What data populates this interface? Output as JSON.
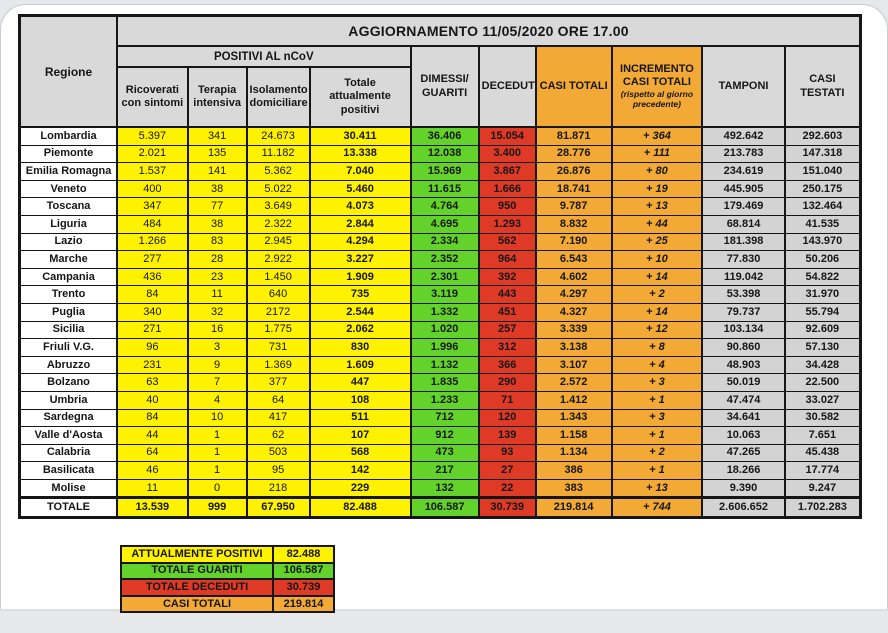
{
  "header": {
    "update_title": "AGGIORNAMENTO 11/05/2020 ORE 17.00"
  },
  "table": {
    "corner_label": "Regione",
    "group_positivi": "POSITIVI AL nCoV",
    "col_ricoverati": "Ricoverati con sintomi",
    "col_terapia": "Terapia intensiva",
    "col_isolamento": "Isolamento domiciliare",
    "col_totale_pos": "Totale attualmente positivi",
    "col_dimessi": "DIMESSI/ GUARITI",
    "col_deceduti": "DECEDUTI",
    "col_casi_totali": "CASI TOTALI",
    "col_incremento": "INCREMENTO CASI TOTALI",
    "col_incremento_sub": "(rispetto al giorno precedente)",
    "col_tamponi": "TAMPONI",
    "col_testati": "CASI TESTATI"
  },
  "colors": {
    "yellow": "#fff200",
    "green": "#63d32b",
    "red": "#df3a26",
    "red_text": "#7a150b",
    "orange": "#f2a935",
    "gray": "#d3d3d3"
  },
  "chart_data": {
    "type": "table",
    "title": "AGGIORNAMENTO 11/05/2020 ORE 17.00",
    "columns": [
      "Regione",
      "Ricoverati con sintomi",
      "Terapia intensiva",
      "Isolamento domiciliare",
      "Totale attualmente positivi",
      "DIMESSI/GUARITI",
      "DECEDUTI",
      "CASI TOTALI",
      "INCREMENTO CASI TOTALI (rispetto al giorno precedente)",
      "TAMPONI",
      "CASI TESTATI"
    ],
    "rows": [
      [
        "Lombardia",
        "5.397",
        "341",
        "24.673",
        "30.411",
        "36.406",
        "15.054",
        "81.871",
        "+ 364",
        "492.642",
        "292.603"
      ],
      [
        "Piemonte",
        "2.021",
        "135",
        "11.182",
        "13.338",
        "12.038",
        "3.400",
        "28.776",
        "+ 111",
        "213.783",
        "147.318"
      ],
      [
        "Emilia Romagna",
        "1.537",
        "141",
        "5.362",
        "7.040",
        "15.969",
        "3.867",
        "26.876",
        "+ 80",
        "234.619",
        "151.040"
      ],
      [
        "Veneto",
        "400",
        "38",
        "5.022",
        "5.460",
        "11.615",
        "1.666",
        "18.741",
        "+ 19",
        "445.905",
        "250.175"
      ],
      [
        "Toscana",
        "347",
        "77",
        "3.649",
        "4.073",
        "4.764",
        "950",
        "9.787",
        "+ 13",
        "179.469",
        "132.464"
      ],
      [
        "Liguria",
        "484",
        "38",
        "2.322",
        "2.844",
        "4.695",
        "1.293",
        "8.832",
        "+ 44",
        "68.814",
        "41.535"
      ],
      [
        "Lazio",
        "1.266",
        "83",
        "2.945",
        "4.294",
        "2.334",
        "562",
        "7.190",
        "+ 25",
        "181.398",
        "143.970"
      ],
      [
        "Marche",
        "277",
        "28",
        "2.922",
        "3.227",
        "2.352",
        "964",
        "6.543",
        "+ 10",
        "77.830",
        "50.206"
      ],
      [
        "Campania",
        "436",
        "23",
        "1.450",
        "1.909",
        "2.301",
        "392",
        "4.602",
        "+ 14",
        "119.042",
        "54.822"
      ],
      [
        "Trento",
        "84",
        "11",
        "640",
        "735",
        "3.119",
        "443",
        "4.297",
        "+ 2",
        "53.398",
        "31.970"
      ],
      [
        "Puglia",
        "340",
        "32",
        "2172",
        "2.544",
        "1.332",
        "451",
        "4.327",
        "+ 14",
        "79.737",
        "55.794"
      ],
      [
        "Sicilia",
        "271",
        "16",
        "1.775",
        "2.062",
        "1.020",
        "257",
        "3.339",
        "+ 12",
        "103.134",
        "92.609"
      ],
      [
        "Friuli V.G.",
        "96",
        "3",
        "731",
        "830",
        "1.996",
        "312",
        "3.138",
        "+ 8",
        "90.860",
        "57.130"
      ],
      [
        "Abruzzo",
        "231",
        "9",
        "1.369",
        "1.609",
        "1.132",
        "366",
        "3.107",
        "+ 4",
        "48.903",
        "34.428"
      ],
      [
        "Bolzano",
        "63",
        "7",
        "377",
        "447",
        "1.835",
        "290",
        "2.572",
        "+ 3",
        "50.019",
        "22.500"
      ],
      [
        "Umbria",
        "40",
        "4",
        "64",
        "108",
        "1.233",
        "71",
        "1.412",
        "+ 1",
        "47.474",
        "33.027"
      ],
      [
        "Sardegna",
        "84",
        "10",
        "417",
        "511",
        "712",
        "120",
        "1.343",
        "+ 3",
        "34.641",
        "30.582"
      ],
      [
        "Valle d'Aosta",
        "44",
        "1",
        "62",
        "107",
        "912",
        "139",
        "1.158",
        "+ 1",
        "10.063",
        "7.651"
      ],
      [
        "Calabria",
        "64",
        "1",
        "503",
        "568",
        "473",
        "93",
        "1.134",
        "+ 2",
        "47.265",
        "45.438"
      ],
      [
        "Basilicata",
        "46",
        "1",
        "95",
        "142",
        "217",
        "27",
        "386",
        "+ 1",
        "18.266",
        "17.774"
      ],
      [
        "Molise",
        "11",
        "0",
        "218",
        "229",
        "132",
        "22",
        "383",
        "+ 13",
        "9.390",
        "9.247"
      ]
    ],
    "total_row": [
      "TOTALE",
      "13.539",
      "999",
      "67.950",
      "82.488",
      "106.587",
      "30.739",
      "219.814",
      "+ 744",
      "2.606.652",
      "1.702.283"
    ]
  },
  "summary": {
    "rows": [
      {
        "label": "ATTUALMENTE POSITIVI",
        "value": "82.488",
        "color": "yellow"
      },
      {
        "label": "TOTALE GUARITI",
        "value": "106.587",
        "color": "green"
      },
      {
        "label": "TOTALE DECEDUTI",
        "value": "30.739",
        "color": "red"
      },
      {
        "label": "CASI TOTALI",
        "value": "219.814",
        "color": "orange"
      }
    ]
  }
}
